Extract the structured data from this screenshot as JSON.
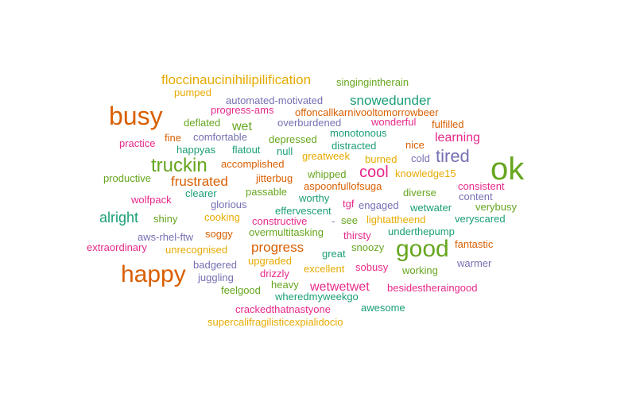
{
  "chart_data": {
    "type": "wordcloud",
    "title": "",
    "palette": {
      "teal": "#1b9e77",
      "orange": "#d95f02",
      "purple": "#7570b3",
      "magenta": "#e7298a",
      "green": "#66a61e",
      "gold": "#e6ab02"
    },
    "words": [
      {
        "text": "ok",
        "size": 5,
        "color": "green"
      },
      {
        "text": "busy",
        "size": 4,
        "color": "orange"
      },
      {
        "text": "happy",
        "size": 4,
        "color": "orange"
      },
      {
        "text": "good",
        "size": 4,
        "color": "green"
      },
      {
        "text": "truckin",
        "size": 3,
        "color": "green"
      },
      {
        "text": "tired",
        "size": 3,
        "color": "purple"
      },
      {
        "text": "cool",
        "size": 3,
        "color": "magenta"
      },
      {
        "text": "alright",
        "size": 2.5,
        "color": "teal"
      },
      {
        "text": "progress",
        "size": 2.5,
        "color": "orange"
      },
      {
        "text": "frustrated",
        "size": 2.5,
        "color": "orange"
      },
      {
        "text": "learning",
        "size": 2.5,
        "color": "magenta"
      },
      {
        "text": "wetwetwet",
        "size": 2.5,
        "color": "magenta"
      },
      {
        "text": "snowedunder",
        "size": 2.5,
        "color": "teal"
      },
      {
        "text": "floccinaucinihilipilification",
        "size": 2.5,
        "color": "gold"
      },
      {
        "text": "wet",
        "size": 2.5,
        "color": "green"
      },
      {
        "text": "singingintherain",
        "size": 1,
        "color": "green"
      },
      {
        "text": "pumped",
        "size": 1,
        "color": "gold"
      },
      {
        "text": "automated-motivated",
        "size": 1,
        "color": "purple"
      },
      {
        "text": "progress-ams",
        "size": 1,
        "color": "magenta"
      },
      {
        "text": "offoncallkarnivooltomorrowbeer",
        "size": 1,
        "color": "orange"
      },
      {
        "text": "deflated",
        "size": 1,
        "color": "green"
      },
      {
        "text": "overburdened",
        "size": 1,
        "color": "purple"
      },
      {
        "text": "wonderful",
        "size": 1,
        "color": "magenta"
      },
      {
        "text": "fulfilled",
        "size": 1,
        "color": "orange"
      },
      {
        "text": "fine",
        "size": 1,
        "color": "orange"
      },
      {
        "text": "comfortable",
        "size": 1,
        "color": "purple"
      },
      {
        "text": "depressed",
        "size": 1,
        "color": "green"
      },
      {
        "text": "monotonous",
        "size": 1,
        "color": "teal"
      },
      {
        "text": "practice",
        "size": 1,
        "color": "magenta"
      },
      {
        "text": "happyas",
        "size": 1,
        "color": "teal"
      },
      {
        "text": "flatout",
        "size": 1,
        "color": "teal"
      },
      {
        "text": "null",
        "size": 1,
        "color": "teal"
      },
      {
        "text": "distracted",
        "size": 1,
        "color": "teal"
      },
      {
        "text": "nice",
        "size": 1,
        "color": "orange"
      },
      {
        "text": "accomplished",
        "size": 1,
        "color": "orange"
      },
      {
        "text": "greatweek",
        "size": 1,
        "color": "gold"
      },
      {
        "text": "burned",
        "size": 1,
        "color": "gold"
      },
      {
        "text": "cold",
        "size": 1,
        "color": "purple"
      },
      {
        "text": "productive",
        "size": 1,
        "color": "green"
      },
      {
        "text": "jitterbug",
        "size": 1,
        "color": "orange"
      },
      {
        "text": "whipped",
        "size": 1,
        "color": "green"
      },
      {
        "text": "knowledge15",
        "size": 1,
        "color": "gold"
      },
      {
        "text": "consistent",
        "size": 1,
        "color": "magenta"
      },
      {
        "text": "wolfpack",
        "size": 1,
        "color": "magenta"
      },
      {
        "text": "clearer",
        "size": 1,
        "color": "teal"
      },
      {
        "text": "passable",
        "size": 1,
        "color": "green"
      },
      {
        "text": "aspoonfullofsuga",
        "size": 1,
        "color": "orange"
      },
      {
        "text": "diverse",
        "size": 1,
        "color": "green"
      },
      {
        "text": "content",
        "size": 1,
        "color": "purple"
      },
      {
        "text": "glorious",
        "size": 1,
        "color": "purple"
      },
      {
        "text": "worthy",
        "size": 1,
        "color": "teal"
      },
      {
        "text": "tgf",
        "size": 1,
        "color": "magenta"
      },
      {
        "text": "engaged",
        "size": 1,
        "color": "purple"
      },
      {
        "text": "wetwater",
        "size": 1,
        "color": "teal"
      },
      {
        "text": "verybusy",
        "size": 1,
        "color": "green"
      },
      {
        "text": "shiny",
        "size": 1,
        "color": "green"
      },
      {
        "text": "cooking",
        "size": 1,
        "color": "gold"
      },
      {
        "text": "effervescent",
        "size": 1,
        "color": "teal"
      },
      {
        "text": "constructive",
        "size": 1,
        "color": "magenta"
      },
      {
        "text": "-",
        "size": 1,
        "color": "purple"
      },
      {
        "text": "see",
        "size": 1,
        "color": "green"
      },
      {
        "text": "lightattheend",
        "size": 1,
        "color": "gold"
      },
      {
        "text": "veryscared",
        "size": 1,
        "color": "teal"
      },
      {
        "text": "aws-rhel-ftw",
        "size": 1,
        "color": "purple"
      },
      {
        "text": "soggy",
        "size": 1,
        "color": "orange"
      },
      {
        "text": "overmultitasking",
        "size": 1,
        "color": "green"
      },
      {
        "text": "thirsty",
        "size": 1,
        "color": "magenta"
      },
      {
        "text": "underthepump",
        "size": 1,
        "color": "teal"
      },
      {
        "text": "extraordinary",
        "size": 1,
        "color": "magenta"
      },
      {
        "text": "unrecognised",
        "size": 1,
        "color": "gold"
      },
      {
        "text": "snoozy",
        "size": 1,
        "color": "green"
      },
      {
        "text": "fantastic",
        "size": 1,
        "color": "orange"
      },
      {
        "text": "great",
        "size": 1,
        "color": "teal"
      },
      {
        "text": "upgraded",
        "size": 1,
        "color": "gold"
      },
      {
        "text": "badgered",
        "size": 1,
        "color": "purple"
      },
      {
        "text": "excellent",
        "size": 1,
        "color": "gold"
      },
      {
        "text": "sobusy",
        "size": 1,
        "color": "magenta"
      },
      {
        "text": "warmer",
        "size": 1,
        "color": "purple"
      },
      {
        "text": "juggling",
        "size": 1,
        "color": "purple"
      },
      {
        "text": "drizzly",
        "size": 1,
        "color": "magenta"
      },
      {
        "text": "working",
        "size": 1,
        "color": "green"
      },
      {
        "text": "feelgood",
        "size": 1,
        "color": "green"
      },
      {
        "text": "heavy",
        "size": 1,
        "color": "green"
      },
      {
        "text": "besidestheraingood",
        "size": 1,
        "color": "magenta"
      },
      {
        "text": "wheredmyweekgo",
        "size": 1,
        "color": "teal"
      },
      {
        "text": "crackedthatnastyone",
        "size": 1,
        "color": "magenta"
      },
      {
        "text": "awesome",
        "size": 1,
        "color": "teal"
      },
      {
        "text": "supercalifragilisticexpialidocio",
        "size": 1,
        "color": "gold"
      }
    ]
  }
}
